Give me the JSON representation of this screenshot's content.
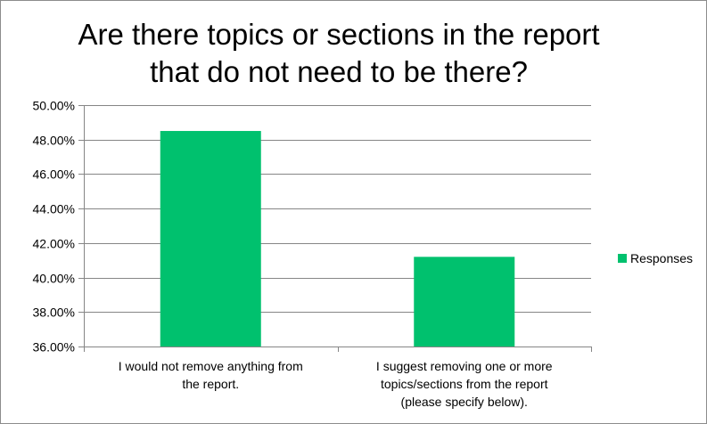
{
  "chart_data": {
    "type": "bar",
    "title_lines": [
      "Are there topics or sections in the report",
      "that do not need to be there?"
    ],
    "categories": [
      [
        "I would not remove anything from",
        "the report."
      ],
      [
        "I suggest removing one or more",
        "topics/sections from the report",
        "(please specify below)."
      ]
    ],
    "series": [
      {
        "name": "Responses",
        "values": [
          48.5,
          41.2
        ]
      }
    ],
    "ylim": [
      36,
      50
    ],
    "yticks": [
      "36.00%",
      "38.00%",
      "40.00%",
      "42.00%",
      "44.00%",
      "46.00%",
      "48.00%",
      "50.00%"
    ],
    "ytick_values": [
      36,
      38,
      40,
      42,
      44,
      46,
      48,
      50
    ],
    "grid": true,
    "legend_position": "right",
    "bar_color": "#00c16e",
    "gridline_color": "#868686",
    "axis_color": "#868686"
  }
}
